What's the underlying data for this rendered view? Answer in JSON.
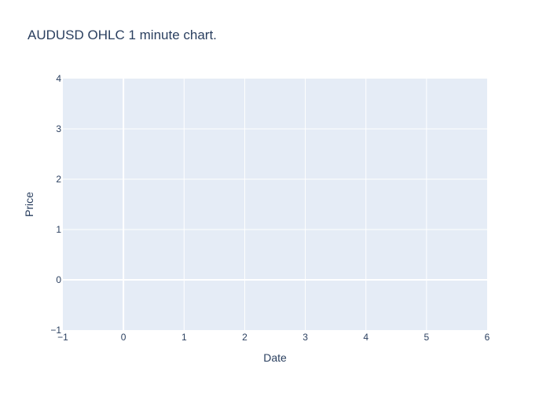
{
  "chart_data": {
    "type": "ohlc",
    "title": "AUDUSD OHLC 1 minute chart.",
    "xlabel": "Date",
    "ylabel": "Price",
    "xlim": [
      -1,
      6
    ],
    "ylim": [
      -1,
      4
    ],
    "x_ticks": [
      -1,
      0,
      1,
      2,
      3,
      4,
      5,
      6
    ],
    "y_ticks": [
      -1,
      0,
      1,
      2,
      3,
      4
    ],
    "x_tick_labels": [
      "−1",
      "0",
      "1",
      "2",
      "3",
      "4",
      "5",
      "6"
    ],
    "y_tick_labels": [
      "−1",
      "0",
      "1",
      "2",
      "3",
      "4"
    ],
    "series": [],
    "grid": true,
    "colors": {
      "plot_background": "#e5ecf6",
      "grid": "#ffffff",
      "text": "#2a3f5f"
    }
  }
}
